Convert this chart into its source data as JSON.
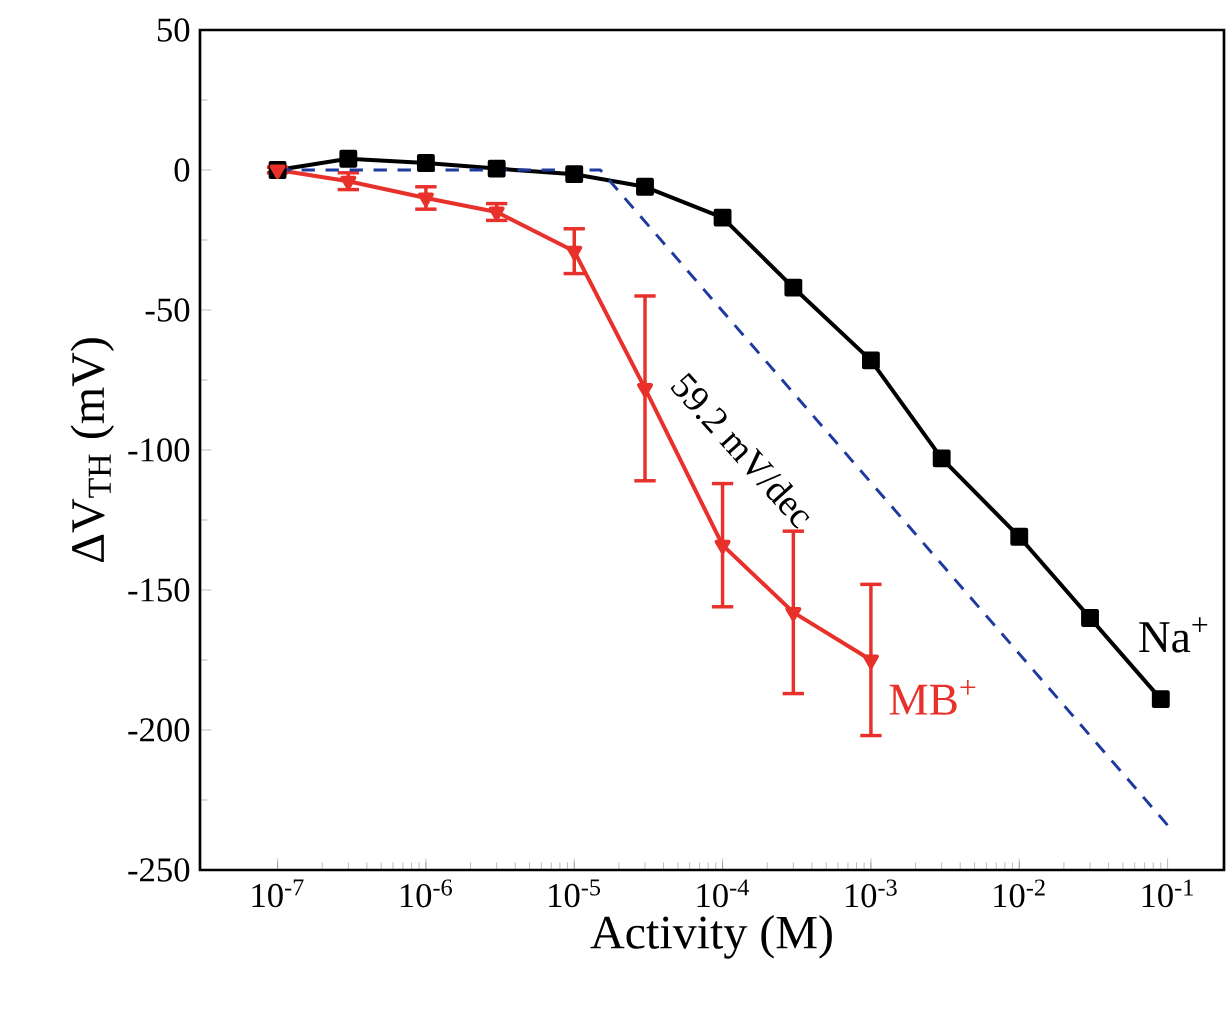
{
  "chart_data": {
    "type": "line",
    "xlabel": "Activity (M)",
    "ylabel": "ΔV$_{TH}$ (mV)",
    "log": "x",
    "xlim": [
      3e-08,
      0.24
    ],
    "ylim": [
      -250,
      50
    ],
    "xticks": [
      {
        "value": 1e-07,
        "label": "10$^{-7}$"
      },
      {
        "value": 1e-06,
        "label": "10$^{-6}$"
      },
      {
        "value": 1e-05,
        "label": "10$^{-5}$"
      },
      {
        "value": 0.0001,
        "label": "10$^{-4}$"
      },
      {
        "value": 0.001,
        "label": "10$^{-3}$"
      },
      {
        "value": 0.01,
        "label": "10$^{-2}$"
      },
      {
        "value": 0.1,
        "label": "10$^{-1}$"
      }
    ],
    "yticks": [
      -250,
      -200,
      -150,
      -100,
      -50,
      0,
      50
    ],
    "grid": false,
    "legend": false,
    "series": [
      {
        "name": "Na$^{+}$",
        "color": "#000000",
        "marker": "square",
        "line_style": "solid",
        "x": [
          1e-07,
          3e-07,
          1e-06,
          3e-06,
          1e-05,
          3e-05,
          0.0001,
          0.0003,
          0.001,
          0.003,
          0.01,
          0.03,
          0.09
        ],
        "values": [
          0,
          4,
          2.5,
          0.5,
          -1.5,
          -6,
          -17,
          -42,
          -68,
          -103,
          -131,
          -160,
          -189
        ]
      },
      {
        "name": "MB$^{+}$",
        "color": "#e8312a",
        "marker": "triangle",
        "line_style": "solid",
        "x": [
          1e-07,
          3e-07,
          1e-06,
          3e-06,
          1e-05,
          3e-05,
          0.0001,
          0.0003,
          0.001
        ],
        "values": [
          0,
          -4,
          -10,
          -15,
          -29,
          -78,
          -134,
          -158,
          -175
        ],
        "errors": [
          1,
          3,
          4,
          3,
          8,
          33,
          22,
          29,
          27
        ]
      },
      {
        "color": "#1f3a9e",
        "marker": "none",
        "line_style": "dashed",
        "x": [
          1e-07,
          1.5e-05,
          0.1
        ],
        "values": [
          0,
          0,
          -234
        ]
      }
    ],
    "annotations": [
      "59.2 mV/dec"
    ]
  }
}
